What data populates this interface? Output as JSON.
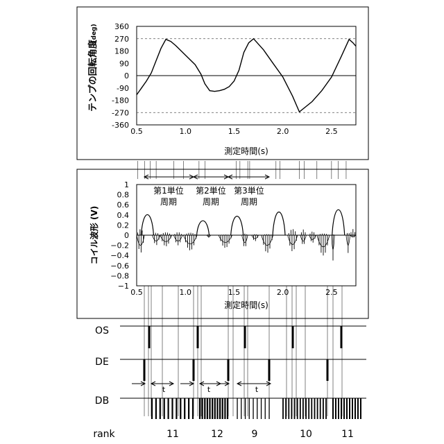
{
  "panel_top": {
    "ylabel": "テンプの回転角度",
    "ylabel_unit": "(deg)",
    "xlabel": "測定時間(s)",
    "yticks": [
      "360",
      "270",
      "180",
      "90",
      "0",
      "-90",
      "-180",
      "-270",
      "-360"
    ],
    "xticks": [
      "0.5",
      "1.0",
      "1.5",
      "2.0",
      "2.5"
    ]
  },
  "panel_mid": {
    "ylabel": "コイル波形 (V)",
    "xlabel": "測定時間(s)",
    "yticks": [
      "1",
      "0.8",
      "0.6",
      "0.4",
      "0.2",
      "0",
      "-0.2",
      "-0.4",
      "-0.6",
      "-0.8",
      "-1"
    ],
    "xticks": [
      "0.5",
      "1.0",
      "1.5",
      "2.0",
      "2.5"
    ],
    "periods": [
      {
        "line1": "第1単位",
        "line2": "周期"
      },
      {
        "line1": "第2単位",
        "line2": "周期"
      },
      {
        "line1": "第3単位",
        "line2": "周期"
      }
    ]
  },
  "signals": {
    "os_label": "OS",
    "de_label": "DE",
    "db_label": "DB",
    "rank_label": "rank",
    "t_label": "t",
    "ranks": [
      "11",
      "12",
      "9",
      "10",
      "11"
    ]
  },
  "chart_data": [
    {
      "type": "line",
      "xlim": [
        0.5,
        2.75
      ],
      "ylim": [
        -360,
        360
      ],
      "x": [
        0.5,
        0.55,
        0.6,
        0.65,
        0.7,
        0.75,
        0.8,
        0.85,
        0.9,
        1.0,
        1.1,
        1.16,
        1.2,
        1.25,
        1.3,
        1.35,
        1.4,
        1.45,
        1.5,
        1.55,
        1.6,
        1.65,
        1.7,
        1.8,
        1.9,
        2.0,
        2.1,
        2.17,
        2.3,
        2.4,
        2.5,
        2.6,
        2.68,
        2.72,
        2.75
      ],
      "y": [
        -140,
        -90,
        -40,
        20,
        110,
        200,
        265,
        250,
        220,
        150,
        80,
        10,
        -60,
        -110,
        -115,
        -110,
        -100,
        -80,
        -40,
        40,
        170,
        240,
        270,
        190,
        90,
        -10,
        -150,
        -265,
        -190,
        -110,
        -10,
        140,
        265,
        240,
        215
      ],
      "guides_y": [
        270,
        -270
      ]
    },
    {
      "type": "line",
      "xlim": [
        0.5,
        2.75
      ],
      "ylim": [
        -1,
        1
      ],
      "peaks": [
        {
          "x": 0.61,
          "v": 0.54
        },
        {
          "x": 1.18,
          "v": 0.38
        },
        {
          "x": 1.53,
          "v": 0.5
        },
        {
          "x": 1.96,
          "v": 0.61
        },
        {
          "x": 2.57,
          "v": 0.67
        }
      ]
    }
  ]
}
